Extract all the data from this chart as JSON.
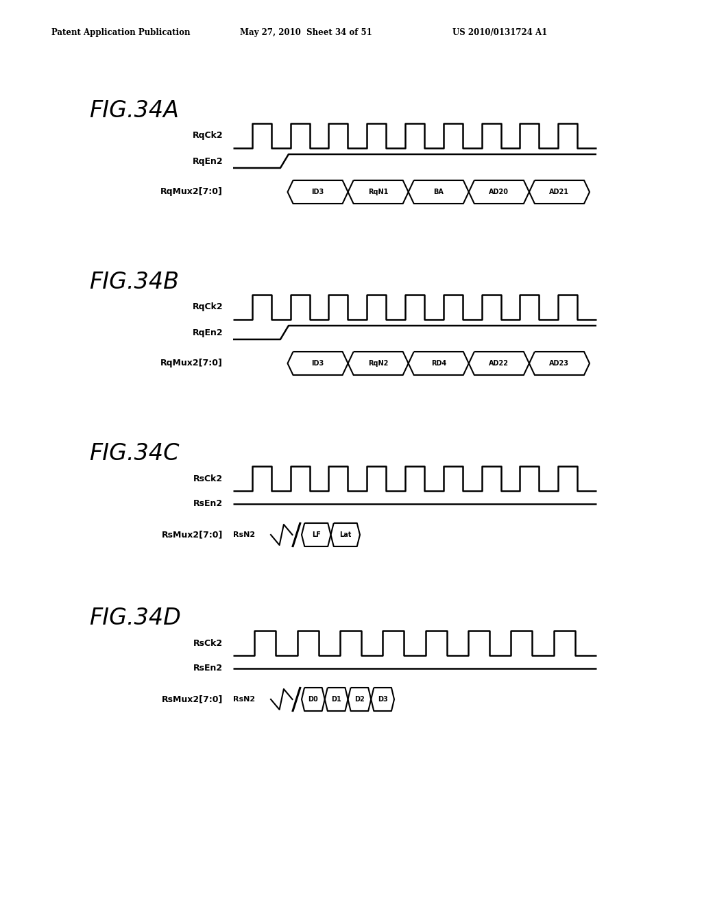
{
  "header_left": "Patent Application Publication",
  "header_mid": "May 27, 2010  Sheet 34 of 51",
  "header_right": "US 2010/0131724 A1",
  "background_color": "#ffffff",
  "fig_labels": [
    "FIG.34A",
    "FIG.34B",
    "FIG.34C",
    "FIG.34D"
  ],
  "signal_names_AB": [
    [
      "RqCk2",
      "RqEn2",
      "RqMux2[7:0]"
    ],
    [
      "RqCk2",
      "RqEn2",
      "RqMux2[7:0]"
    ]
  ],
  "signal_names_CD": [
    [
      "RsCk2",
      "RsEn2",
      "RsMux2[7:0]"
    ],
    [
      "RsCk2",
      "RsEn2",
      "RsMux2[7:0]"
    ]
  ],
  "bus_segments_A": [
    "ID3",
    "RqN1",
    "BA",
    "AD20",
    "AD21"
  ],
  "bus_segments_B": [
    "ID3",
    "RqN2",
    "RD4",
    "AD22",
    "AD23"
  ],
  "bus_prefix_C": "RsN2",
  "bus_segments_C": [
    "LF",
    "Lat"
  ],
  "bus_prefix_D": "RsN2",
  "bus_segments_D": [
    "D0",
    "D1",
    "D2",
    "D3"
  ],
  "clock_pulses_AB": 9,
  "clock_pulses_CD": 9,
  "lw_clock": 1.8,
  "lw_enable": 1.8,
  "lw_bus": 1.5
}
